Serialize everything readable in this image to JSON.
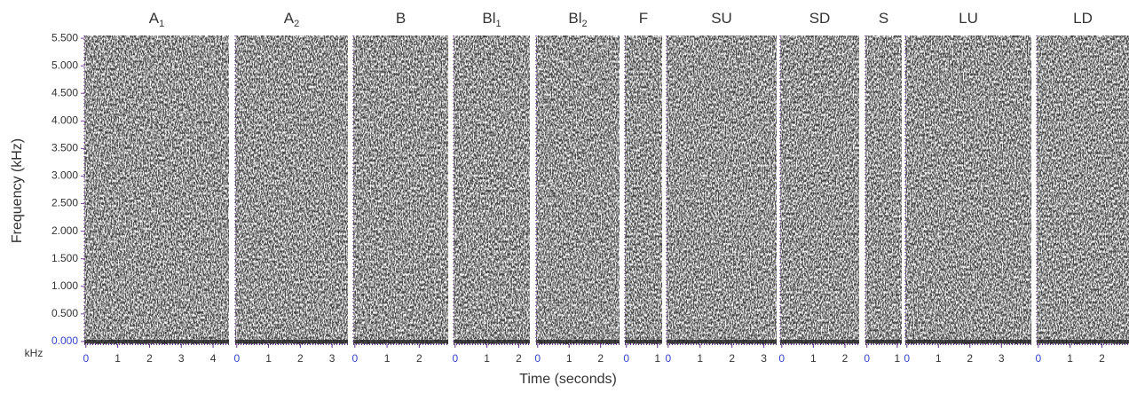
{
  "chart_data": {
    "type": "spectrogram",
    "y_label": "Frequency (kHz)",
    "x_label": "Time (seconds)",
    "y_unit": "kHz",
    "ylim": [
      -0.05,
      5.55
    ],
    "yticks": [
      {
        "value": 0,
        "label": "0.000"
      },
      {
        "value": 0.5,
        "label": "0.500"
      },
      {
        "value": 1,
        "label": "1.000"
      },
      {
        "value": 1.5,
        "label": "1.500"
      },
      {
        "value": 2,
        "label": "2.000"
      },
      {
        "value": 2.5,
        "label": "2.500"
      },
      {
        "value": 3,
        "label": "3.000"
      },
      {
        "value": 3.5,
        "label": "3.500"
      },
      {
        "value": 4,
        "label": "4.000"
      },
      {
        "value": 4.5,
        "label": "4.500"
      },
      {
        "value": 5,
        "label": "5.000"
      },
      {
        "value": 5.5,
        "label": "5.500"
      }
    ],
    "panels": [
      {
        "title": "A",
        "title_subscript": "1",
        "xlim": [
          -0.05,
          4.5
        ],
        "xticks": [
          0,
          1,
          2,
          3,
          4
        ]
      },
      {
        "title": "A",
        "title_subscript": "2",
        "xlim": [
          -0.05,
          3.5
        ],
        "xticks": [
          0,
          1,
          2,
          3
        ]
      },
      {
        "title": "B",
        "xlim": [
          -0.05,
          2.9
        ],
        "xticks": [
          0,
          1,
          2
        ]
      },
      {
        "title": "Bl",
        "title_subscript": "1",
        "xlim": [
          -0.05,
          2.35
        ],
        "xticks": [
          0,
          1,
          2
        ]
      },
      {
        "title": "Bl",
        "title_subscript": "2",
        "xlim": [
          -0.05,
          2.6
        ],
        "xticks": [
          0,
          1,
          2
        ]
      },
      {
        "title": "F",
        "xlim": [
          -0.05,
          1.15
        ],
        "xticks": [
          0,
          1
        ]
      },
      {
        "title": "SU",
        "xlim": [
          -0.05,
          3.4
        ],
        "xticks": [
          0,
          1,
          2,
          3
        ]
      },
      {
        "title": "SD",
        "xlim": [
          -0.05,
          2.45
        ],
        "xticks": [
          0,
          1,
          2
        ]
      },
      {
        "title": "S",
        "xlim": [
          -0.05,
          1.15
        ],
        "xticks": [
          0,
          1
        ]
      },
      {
        "title": "LU",
        "xlim": [
          -0.05,
          3.95
        ],
        "xticks": [
          0,
          1,
          2,
          3
        ]
      },
      {
        "title": "LD",
        "xlim": [
          -0.05,
          2.85
        ],
        "xticks": [
          0,
          1,
          2
        ]
      }
    ]
  }
}
